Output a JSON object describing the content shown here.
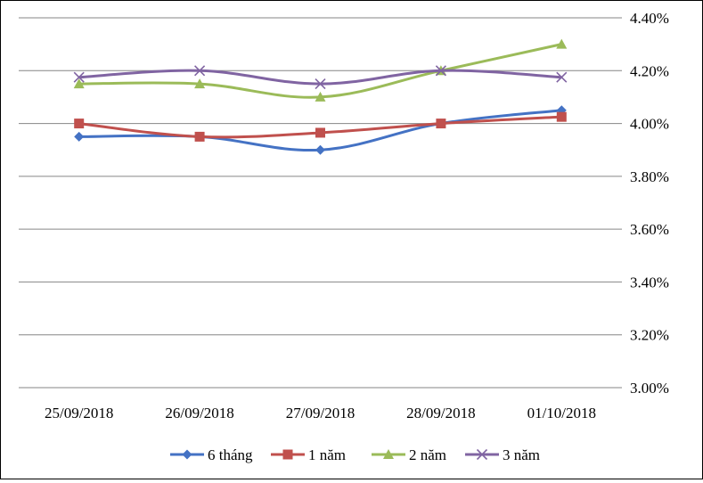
{
  "chart_data": {
    "type": "line",
    "title": "",
    "xlabel": "",
    "ylabel": "",
    "categories": [
      "25/09/2018",
      "26/09/2018",
      "27/09/2018",
      "28/09/2018",
      "01/10/2018"
    ],
    "ylim": [
      3.0,
      4.4
    ],
    "yticks": [
      "3.00%",
      "3.20%",
      "3.40%",
      "3.60%",
      "3.80%",
      "4.00%",
      "4.20%",
      "4.40%"
    ],
    "ytick_values": [
      3.0,
      3.2,
      3.4,
      3.6,
      3.8,
      4.0,
      4.2,
      4.4
    ],
    "y_axis_side": "right",
    "grid": true,
    "legend_position": "bottom",
    "series": [
      {
        "name": "6 tháng",
        "values": [
          3.95,
          3.95,
          3.9,
          4.0,
          4.05
        ],
        "color": "#4472C4",
        "marker": "diamond"
      },
      {
        "name": "1 năm",
        "values": [
          4.0,
          3.95,
          3.965,
          4.0,
          4.025
        ],
        "color": "#C0504D",
        "marker": "square"
      },
      {
        "name": "2 năm",
        "values": [
          4.15,
          4.15,
          4.1,
          4.2,
          4.3
        ],
        "color": "#9BBB59",
        "marker": "triangle"
      },
      {
        "name": "3 năm",
        "values": [
          4.175,
          4.2,
          4.15,
          4.2,
          4.175
        ],
        "color": "#8064A2",
        "marker": "x"
      }
    ]
  }
}
